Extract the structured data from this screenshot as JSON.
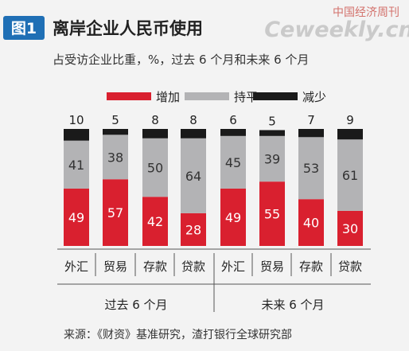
{
  "header": {
    "figure_label": "图1",
    "title": "离岸企业人民币使用",
    "subtitle": "占受访企业比重，%，过去 6 个月和未来 6 个月",
    "watermark_cn": "中国经济周刊",
    "watermark_en": "Ceweekly.cn"
  },
  "colors": {
    "figure_label_bg": "#1f6fb5",
    "increase": "#d9202f",
    "flat": "#b3b3b5",
    "decrease": "#1a1a1a",
    "title": "#222222",
    "text": "#333333"
  },
  "chart_data": {
    "type": "bar",
    "stacked": true,
    "title": "离岸企业人民币使用",
    "subtitle": "占受访企业比重，%，过去 6 个月和未来 6 个月",
    "ylim": [
      0,
      100
    ],
    "categories": [
      "外汇",
      "贸易",
      "存款",
      "贷款",
      "外汇",
      "贸易",
      "存款",
      "贷款"
    ],
    "groups": [
      {
        "label": "过去 6 个月",
        "category_indices": [
          0,
          1,
          2,
          3
        ]
      },
      {
        "label": "未来 6 个月",
        "category_indices": [
          4,
          5,
          6,
          7
        ]
      }
    ],
    "series": [
      {
        "name": "增加",
        "color": "#d9202f",
        "values": [
          49,
          57,
          42,
          28,
          49,
          55,
          40,
          30
        ]
      },
      {
        "name": "持平",
        "color": "#b3b3b5",
        "values": [
          41,
          38,
          50,
          64,
          45,
          39,
          53,
          61
        ]
      },
      {
        "name": "减少",
        "color": "#1a1a1a",
        "values": [
          10,
          5,
          8,
          8,
          6,
          5,
          7,
          9
        ]
      }
    ],
    "legend_position": "top"
  },
  "footer": {
    "source": "来源：《财资》基准研究，渣打银行全球研究部"
  }
}
